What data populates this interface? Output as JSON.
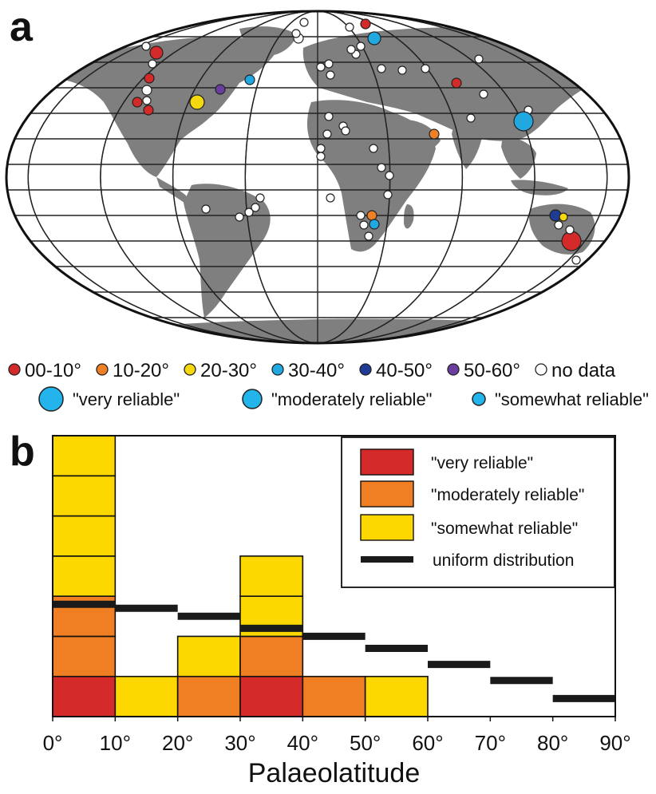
{
  "panel_a": {
    "letter": "a",
    "latitude_classes": [
      {
        "label": "00-10°",
        "color": "#d42a2a"
      },
      {
        "label": "10-20°",
        "color": "#f08024"
      },
      {
        "label": "20-30°",
        "color": "#f6d80e"
      },
      {
        "label": "30-40°",
        "color": "#22a8e0"
      },
      {
        "label": "40-50°",
        "color": "#1f3b96"
      },
      {
        "label": "50-60°",
        "color": "#6b3e9e"
      },
      {
        "label": "no data",
        "color": "#ffffff"
      }
    ],
    "reliability_sizes": [
      {
        "label": "\"very reliable\"",
        "size": "large"
      },
      {
        "label": "\"moderately reliable\"",
        "size": "medium"
      },
      {
        "label": "\"somewhat reliable\"",
        "size": "small"
      }
    ],
    "land_color": "#7f7f7f"
  },
  "chart_data": {
    "type": "bar",
    "stacked": true,
    "panel_letter": "b",
    "xlabel": "Palaeolatitude",
    "x_ticks": [
      "0°",
      "10°",
      "20°",
      "30°",
      "40°",
      "50°",
      "60°",
      "70°",
      "80°",
      "90°"
    ],
    "bins": [
      "0-10",
      "10-20",
      "20-30",
      "30-40",
      "40-50",
      "50-60",
      "60-70",
      "70-80",
      "80-90"
    ],
    "ylim": [
      0,
      7
    ],
    "series": [
      {
        "name": "\"very reliable\"",
        "color": "#d42a2a",
        "values": [
          1,
          0,
          0,
          1,
          0,
          0,
          0,
          0,
          0
        ]
      },
      {
        "name": "\"moderately reliable\"",
        "color": "#f07e22",
        "values": [
          2,
          0,
          1,
          1,
          1,
          0,
          0,
          0,
          0
        ]
      },
      {
        "name": "\"somewhat reliable\"",
        "color": "#fcd800",
        "values": [
          4,
          1,
          1,
          2,
          0,
          1,
          0,
          0,
          0
        ]
      }
    ],
    "uniform_distribution": {
      "name": "uniform distribution",
      "color": "#1a1a1a",
      "values": [
        2.8,
        2.7,
        2.5,
        2.2,
        2.0,
        1.7,
        1.3,
        0.9,
        0.45
      ]
    },
    "legend_position": "top-right"
  }
}
